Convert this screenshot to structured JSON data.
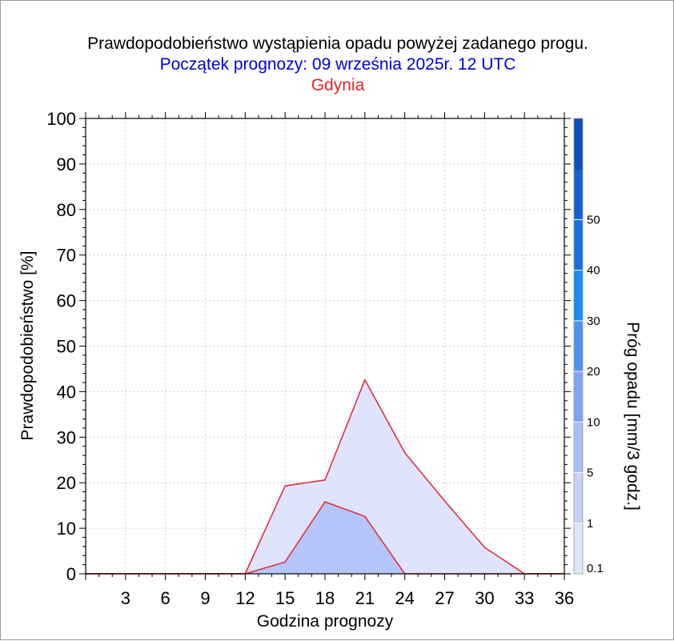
{
  "header": {
    "title": "Prawdopodobieństwo wystąpienia opadu powyżej zadanego progu.",
    "subtitle": "Początek prognozy: 09 września 2025r. 12 UTC",
    "location": "Gdynia"
  },
  "chart_data": {
    "type": "area",
    "xlabel": "Godzina prognozy",
    "ylabel": "Prawdopodobieństwo [%]",
    "xlim": [
      0,
      36
    ],
    "ylim": [
      0,
      100
    ],
    "xticks": [
      3,
      6,
      9,
      12,
      15,
      18,
      21,
      24,
      27,
      30,
      33,
      36
    ],
    "yticks": [
      0,
      10,
      20,
      30,
      40,
      50,
      60,
      70,
      80,
      90,
      100
    ],
    "grid": true,
    "x": [
      0,
      3,
      6,
      9,
      12,
      15,
      18,
      21,
      24,
      27,
      30,
      33,
      36
    ],
    "series": [
      {
        "threshold": 0.1,
        "color": "#dde4fb",
        "values": [
          0,
          0,
          0,
          0,
          0,
          19.3,
          20.6,
          42.6,
          26.6,
          16.0,
          5.8,
          0,
          0
        ]
      },
      {
        "threshold": 1,
        "color": "#b5c5fa",
        "values": [
          0,
          0,
          0,
          0,
          0,
          2.6,
          15.8,
          12.6,
          0,
          0,
          0,
          0,
          0
        ]
      }
    ],
    "colorbar": {
      "label": "Próg opadu [mm/3 godz.]",
      "ticks": [
        "0.1",
        "1",
        "5",
        "10",
        "20",
        "30",
        "40",
        "50"
      ],
      "colors": [
        "#dde4fb",
        "#c4d2fb",
        "#a7bdfb",
        "#7ea4f7",
        "#5191f4",
        "#148cf2",
        "#1a70e3",
        "#1460d4",
        "#0f4cbf"
      ]
    }
  }
}
